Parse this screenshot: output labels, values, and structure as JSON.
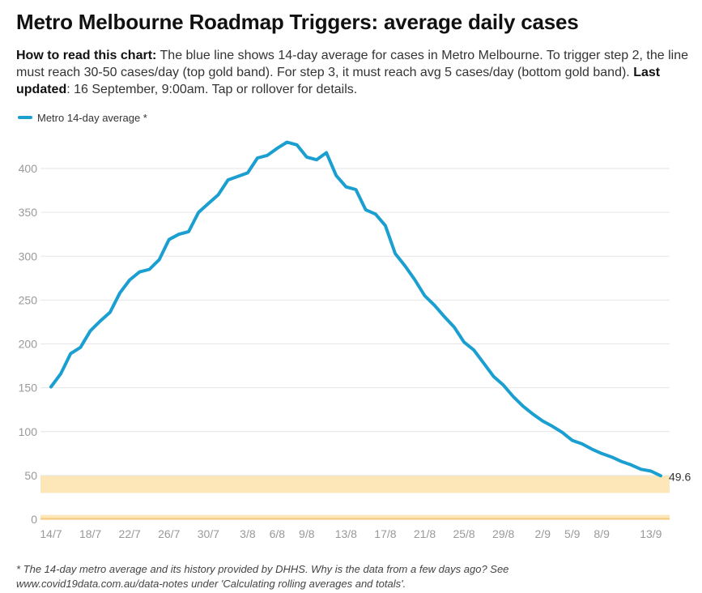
{
  "header": {
    "title": "Metro Melbourne Roadmap Triggers: average daily cases"
  },
  "description": {
    "bold_lead": "How to read this chart:",
    "text_1": " The blue line shows 14-day average for cases in Metro Melbourne. To trigger step 2, the line must reach 30-50 cases/day (top gold band). For step 3, it must reach avg 5 cases/day (bottom gold band). ",
    "bold_updated": "Last updated",
    "text_2": ": 16 September, 9:00am. Tap or rollover for details."
  },
  "legend": {
    "label": "Metro 14-day average *"
  },
  "footnote": {
    "line_1": "* The 14-day metro average and its history provided by DHHS. Why is the data from a few days ago? See",
    "line_2": "www.covid19data.com.au/data-notes under 'Calculating rolling averages and totals'."
  },
  "colors": {
    "line": "#1a9fd0",
    "band": "#fde6b8",
    "band_bottom_edge": "#f5c77a",
    "grid": "#e6e6e6",
    "tick_text": "#999999"
  },
  "chart_data": {
    "type": "line",
    "title": "Metro Melbourne Roadmap Triggers: average daily cases",
    "xlabel": "",
    "ylabel": "",
    "ylim": [
      0,
      430
    ],
    "grid": true,
    "legend_position": "top-left",
    "y_ticks": [
      0,
      50,
      100,
      150,
      200,
      250,
      300,
      350,
      400
    ],
    "x_tick_labels": [
      "14/7",
      "18/7",
      "22/7",
      "26/7",
      "30/7",
      "3/8",
      "6/8",
      "9/8",
      "13/8",
      "17/8",
      "21/8",
      "25/8",
      "29/8",
      "2/9",
      "5/9",
      "8/9",
      "13/9"
    ],
    "end_label": "49.6",
    "bands": [
      {
        "from": 30,
        "to": 50
      },
      {
        "from": 0,
        "to": 5
      }
    ],
    "series": [
      {
        "name": "Metro 14-day average *",
        "dates": [
          "14/7",
          "15/7",
          "16/7",
          "17/7",
          "18/7",
          "19/7",
          "20/7",
          "21/7",
          "22/7",
          "23/7",
          "24/7",
          "25/7",
          "26/7",
          "27/7",
          "28/7",
          "29/7",
          "30/7",
          "31/7",
          "1/8",
          "2/8",
          "3/8",
          "4/8",
          "5/8",
          "6/8",
          "7/8",
          "8/8",
          "9/8",
          "10/8",
          "11/8",
          "12/8",
          "13/8",
          "14/8",
          "15/8",
          "16/8",
          "17/8",
          "18/8",
          "19/8",
          "20/8",
          "21/8",
          "22/8",
          "23/8",
          "24/8",
          "25/8",
          "26/8",
          "27/8",
          "28/8",
          "29/8",
          "30/8",
          "31/8",
          "1/9",
          "2/9",
          "3/9",
          "4/9",
          "5/9",
          "6/9",
          "7/9",
          "8/9",
          "9/9",
          "10/9",
          "11/9",
          "12/9",
          "13/9",
          "14/9"
        ],
        "values": [
          151,
          166,
          189,
          196,
          215,
          226,
          236,
          258,
          273,
          282,
          285,
          296,
          319,
          325,
          328,
          350,
          360,
          370,
          387,
          391,
          395,
          412,
          415,
          423,
          430,
          427,
          413,
          410,
          418,
          392,
          379,
          376,
          353,
          348,
          335,
          303,
          289,
          273,
          255,
          244,
          231,
          219,
          202,
          193,
          178,
          163,
          153,
          140,
          129,
          120,
          112,
          106,
          99,
          90,
          86,
          80,
          75,
          71,
          66,
          62,
          57,
          55,
          49.6
        ]
      }
    ]
  }
}
